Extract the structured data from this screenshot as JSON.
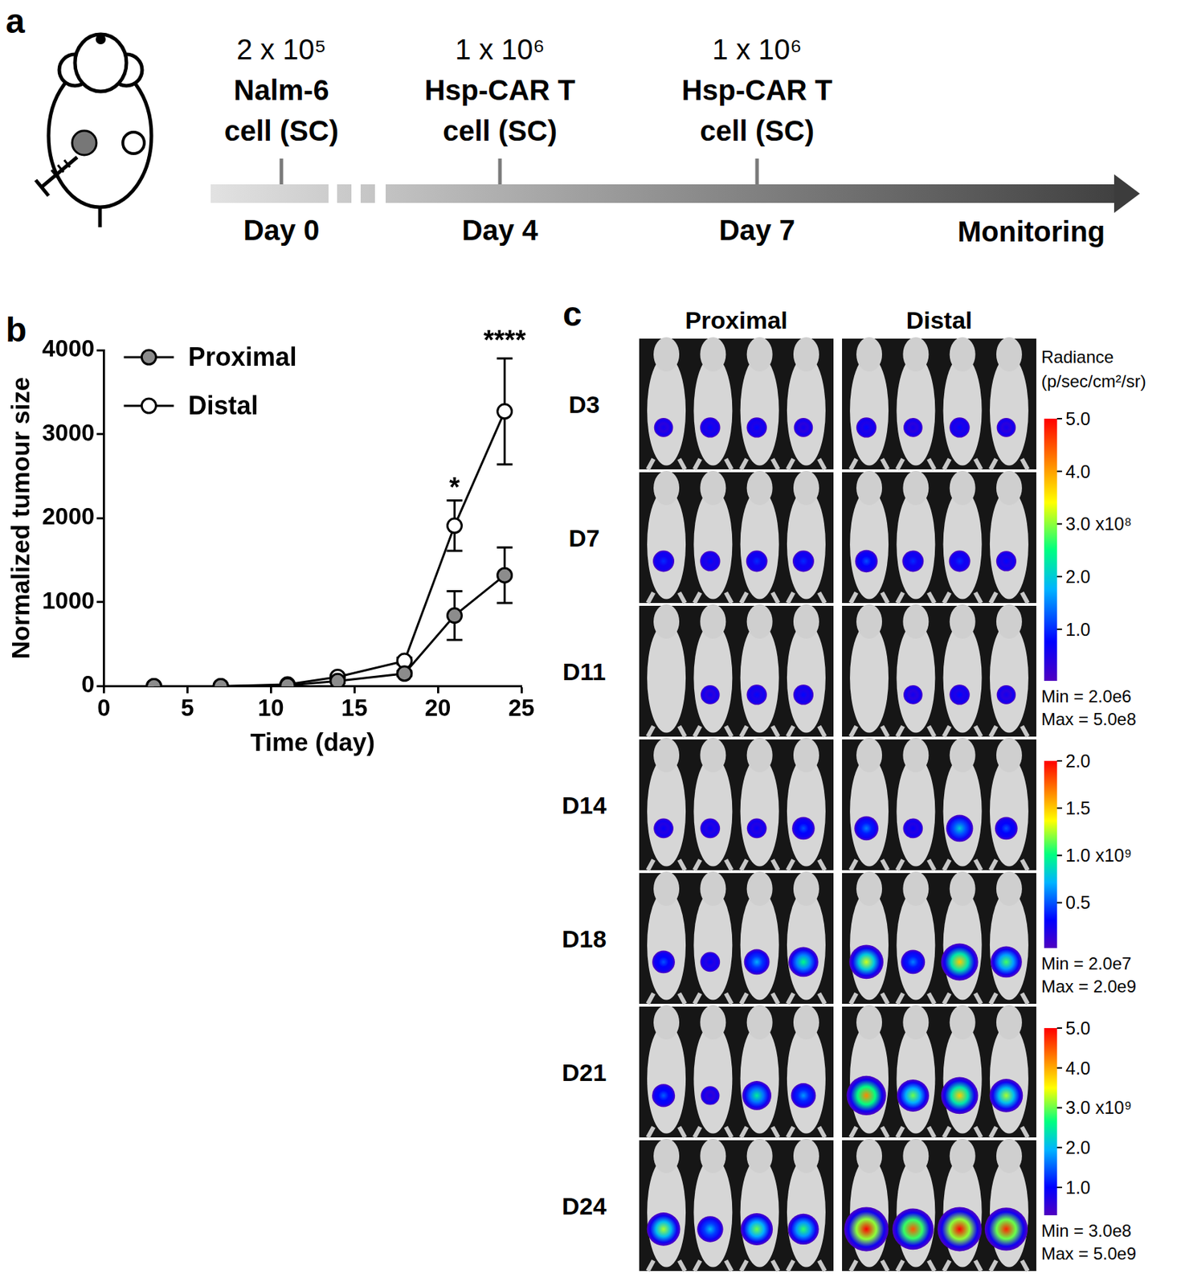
{
  "panel_labels": [
    "a",
    "b",
    "c"
  ],
  "timeline": {
    "events": [
      {
        "lines": [
          "2 x 10⁵",
          "Nalm-6",
          "cell (SC)"
        ],
        "day": "Day 0"
      },
      {
        "lines": [
          "1 x 10⁶",
          "Hsp-CAR T",
          "cell (SC)"
        ],
        "day": "Day 4"
      },
      {
        "lines": [
          "1 x 10⁶",
          "Hsp-CAR T",
          "cell (SC)"
        ],
        "day": "Day 7"
      }
    ],
    "end_label": "Monitoring"
  },
  "chart_data": {
    "type": "line",
    "x": [
      3,
      7,
      11,
      14,
      18,
      21,
      24
    ],
    "series": [
      {
        "name": "Proximal",
        "color": "#8c8c8c",
        "marker": "circle",
        "values": [
          0,
          0,
          10,
          60,
          150,
          840,
          1320
        ],
        "errors": [
          0,
          0,
          10,
          20,
          30,
          290,
          330
        ]
      },
      {
        "name": "Distal",
        "color": "#ffffff",
        "marker": "circle",
        "values": [
          0,
          0,
          20,
          110,
          300,
          1910,
          3270
        ],
        "errors": [
          0,
          0,
          15,
          25,
          40,
          300,
          630
        ]
      }
    ],
    "x_label": "Time (day)",
    "y_label": "Normalized tumour size",
    "xlim": [
      0,
      25
    ],
    "xticks": [
      0,
      5,
      10,
      15,
      20,
      25
    ],
    "ylim": [
      0,
      4000
    ],
    "yticks": [
      0,
      1000,
      2000,
      3000,
      4000
    ],
    "grid": false,
    "legend": "upper left",
    "annotations": [
      {
        "text": "*",
        "x": 21,
        "y": 2350
      },
      {
        "text": "****",
        "x": 24,
        "y": 4100
      }
    ]
  },
  "imaging": {
    "columns": [
      "Proximal",
      "Distal"
    ],
    "rows": [
      {
        "label": "D3",
        "values": [
          [
            60000000,
            80000000,
            80000000,
            60000000
          ],
          [
            80000000,
            60000000,
            80000000,
            60000000
          ]
        ]
      },
      {
        "label": "D7",
        "values": [
          [
            100000000,
            80000000,
            100000000,
            100000000
          ],
          [
            120000000,
            100000000,
            100000000,
            80000000
          ]
        ]
      },
      {
        "label": "D11",
        "values": [
          [
            null,
            60000000,
            80000000,
            80000000
          ],
          [
            null,
            60000000,
            80000000,
            60000000
          ]
        ]
      },
      {
        "label": "D14",
        "values": [
          [
            300000000,
            300000000,
            300000000,
            500000000
          ],
          [
            600000000,
            300000000,
            800000000,
            500000000
          ]
        ]
      },
      {
        "label": "D18",
        "values": [
          [
            500000000,
            300000000,
            700000000,
            1000000000
          ],
          [
            1300000000,
            600000000,
            1500000000,
            1100000000
          ]
        ]
      },
      {
        "label": "D21",
        "values": [
          [
            1500000000,
            800000000,
            2500000000,
            1800000000
          ],
          [
            4200000000,
            3000000000,
            3800000000,
            3200000000
          ]
        ]
      },
      {
        "label": "D24",
        "values": [
          [
            3200000000,
            2000000000,
            3000000000,
            2800000000
          ],
          [
            5000000000,
            4500000000,
            5000000000,
            4800000000
          ]
        ]
      }
    ],
    "colorbar_title": [
      "Radiance",
      "(p/sec/cm²/sr)"
    ],
    "colorbars": [
      {
        "rows": [
          "D3",
          "D7",
          "D11"
        ],
        "min": {
          "value": 2000000,
          "label": "Min = 2.0e6"
        },
        "max": {
          "value": 500000000,
          "label": "Max = 5.0e8"
        },
        "ticks": [
          {
            "value": 100000000,
            "label": "1.0"
          },
          {
            "value": 200000000,
            "label": "2.0"
          },
          {
            "value": 300000000,
            "label": "3.0 x10⁸"
          },
          {
            "value": 400000000,
            "label": "4.0"
          },
          {
            "value": 500000000,
            "label": "5.0"
          }
        ]
      },
      {
        "rows": [
          "D14",
          "D18"
        ],
        "min": {
          "value": 20000000,
          "label": "Min = 2.0e7"
        },
        "max": {
          "value": 2000000000,
          "label": "Max = 2.0e9"
        },
        "ticks": [
          {
            "value": 500000000,
            "label": "0.5"
          },
          {
            "value": 1000000000,
            "label": "1.0 x10⁹"
          },
          {
            "value": 1500000000,
            "label": "1.5"
          },
          {
            "value": 2000000000,
            "label": "2.0"
          }
        ]
      },
      {
        "rows": [
          "D21",
          "D24"
        ],
        "min": {
          "value": 300000000,
          "label": "Min = 3.0e8"
        },
        "max": {
          "value": 5000000000,
          "label": "Max = 5.0e9"
        },
        "ticks": [
          {
            "value": 1000000000,
            "label": "1.0"
          },
          {
            "value": 2000000000,
            "label": "2.0"
          },
          {
            "value": 3000000000,
            "label": "3.0 x10⁹"
          },
          {
            "value": 4000000000,
            "label": "4.0"
          },
          {
            "value": 5000000000,
            "label": "5.0"
          }
        ]
      }
    ]
  }
}
